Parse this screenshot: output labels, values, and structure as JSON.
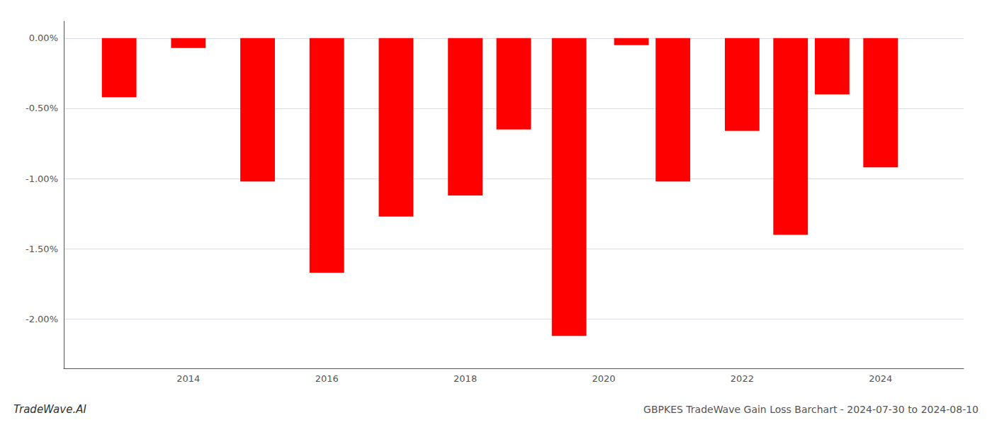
{
  "chart_data": {
    "type": "bar",
    "title": "GBPKES TradeWave Gain Loss Barchart - 2024-07-30 to 2024-08-10",
    "annotations": [
      "TradeWave.AI"
    ],
    "x": [
      2013,
      2014,
      2015,
      2016,
      2017,
      2018,
      2018.7,
      2019.5,
      2020.4,
      2021,
      2022,
      2022.7,
      2023.3,
      2024.0
    ],
    "values": [
      -0.42,
      -0.07,
      -1.02,
      -1.67,
      -1.27,
      -1.12,
      -0.65,
      -2.12,
      -0.05,
      -1.02,
      -0.66,
      -1.4,
      -0.4,
      -0.92
    ],
    "color": "#ff0000",
    "xlim": [
      2012.2,
      2025.2
    ],
    "xticks": [
      2014,
      2016,
      2018,
      2020,
      2022,
      2024
    ],
    "ylim": [
      -2.35,
      0.12
    ],
    "yticks": [
      {
        "value": 0.0,
        "label": "0.00%"
      },
      {
        "value": -0.5,
        "label": "-0.50%"
      },
      {
        "value": -1.0,
        "label": "-1.00%"
      },
      {
        "value": -1.5,
        "label": "-1.50%"
      },
      {
        "value": -2.0,
        "label": "-2.00%"
      }
    ],
    "grid": true
  }
}
